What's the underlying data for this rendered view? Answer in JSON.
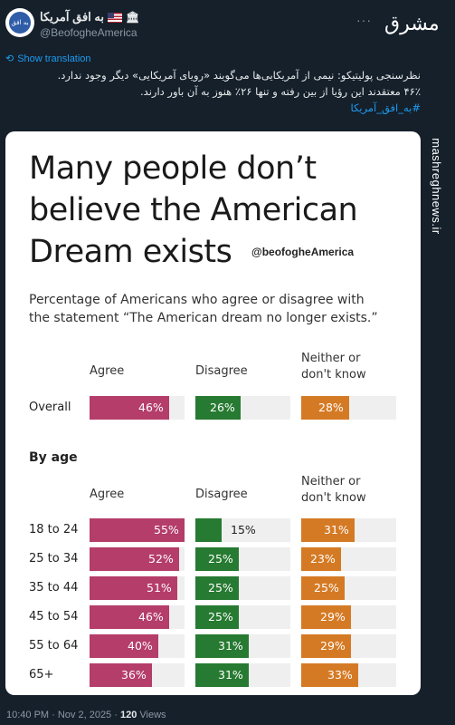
{
  "account": {
    "name": "به افق آمریکا",
    "handle": "@BeofogheAmerica",
    "avatar_text": "به افق"
  },
  "watermark": {
    "brand_logo": "مشرق",
    "side_text": "mashreghnews.ir"
  },
  "tweet": {
    "show_translation": "Show translation",
    "line1": "نظرسنجی پولیتیکو: نیمی از آمریکایی‌ها می‌گویند «رویای آمریکایی» دیگر وجود ندارد.",
    "line2": "۴۶٪ معتقدند این رؤیا از بین رفته و تنها ۲۶٪ هنوز به آن باور دارند.",
    "hashtag": "#به_افق_آمریکا"
  },
  "card": {
    "title_lines": [
      "Many people don’t",
      "believe the American",
      "Dream exists"
    ],
    "handle": "@beofogheAmerica",
    "subtitle_lines": [
      "Percentage of Americans who agree or disagree with",
      "the statement “The American dream no longer exists.”"
    ],
    "columns": {
      "agree": "Agree",
      "disagree": "Disagree",
      "neither_line1": "Neither or",
      "neither_line2": "don't know"
    },
    "section_by_age": "By age"
  },
  "colors": {
    "agree": "#b43d6a",
    "disagree": "#267a31",
    "neither": "#d57a24",
    "track": "#efefef"
  },
  "chart_data": {
    "type": "bar",
    "title": "Many people don’t believe the American Dream exists",
    "subtitle": "Percentage of Americans who agree or disagree with the statement “The American dream no longer exists.”",
    "series_names": [
      "Agree",
      "Disagree",
      "Neither or don't know"
    ],
    "categories": [
      "Overall",
      "18 to 24",
      "25 to 34",
      "35 to 44",
      "45 to 54",
      "55 to 64",
      "65+"
    ],
    "series": [
      {
        "name": "Agree",
        "values": [
          46,
          55,
          52,
          51,
          46,
          40,
          36
        ]
      },
      {
        "name": "Disagree",
        "values": [
          26,
          15,
          25,
          25,
          25,
          31,
          31
        ]
      },
      {
        "name": "Neither or don't know",
        "values": [
          28,
          31,
          23,
          25,
          29,
          29,
          33
        ]
      }
    ],
    "ylim": [
      0,
      55
    ]
  },
  "footer": {
    "time": "10:40 PM · Nov 2, 2025 · ",
    "views_count": "120",
    "views_label": " Views"
  }
}
